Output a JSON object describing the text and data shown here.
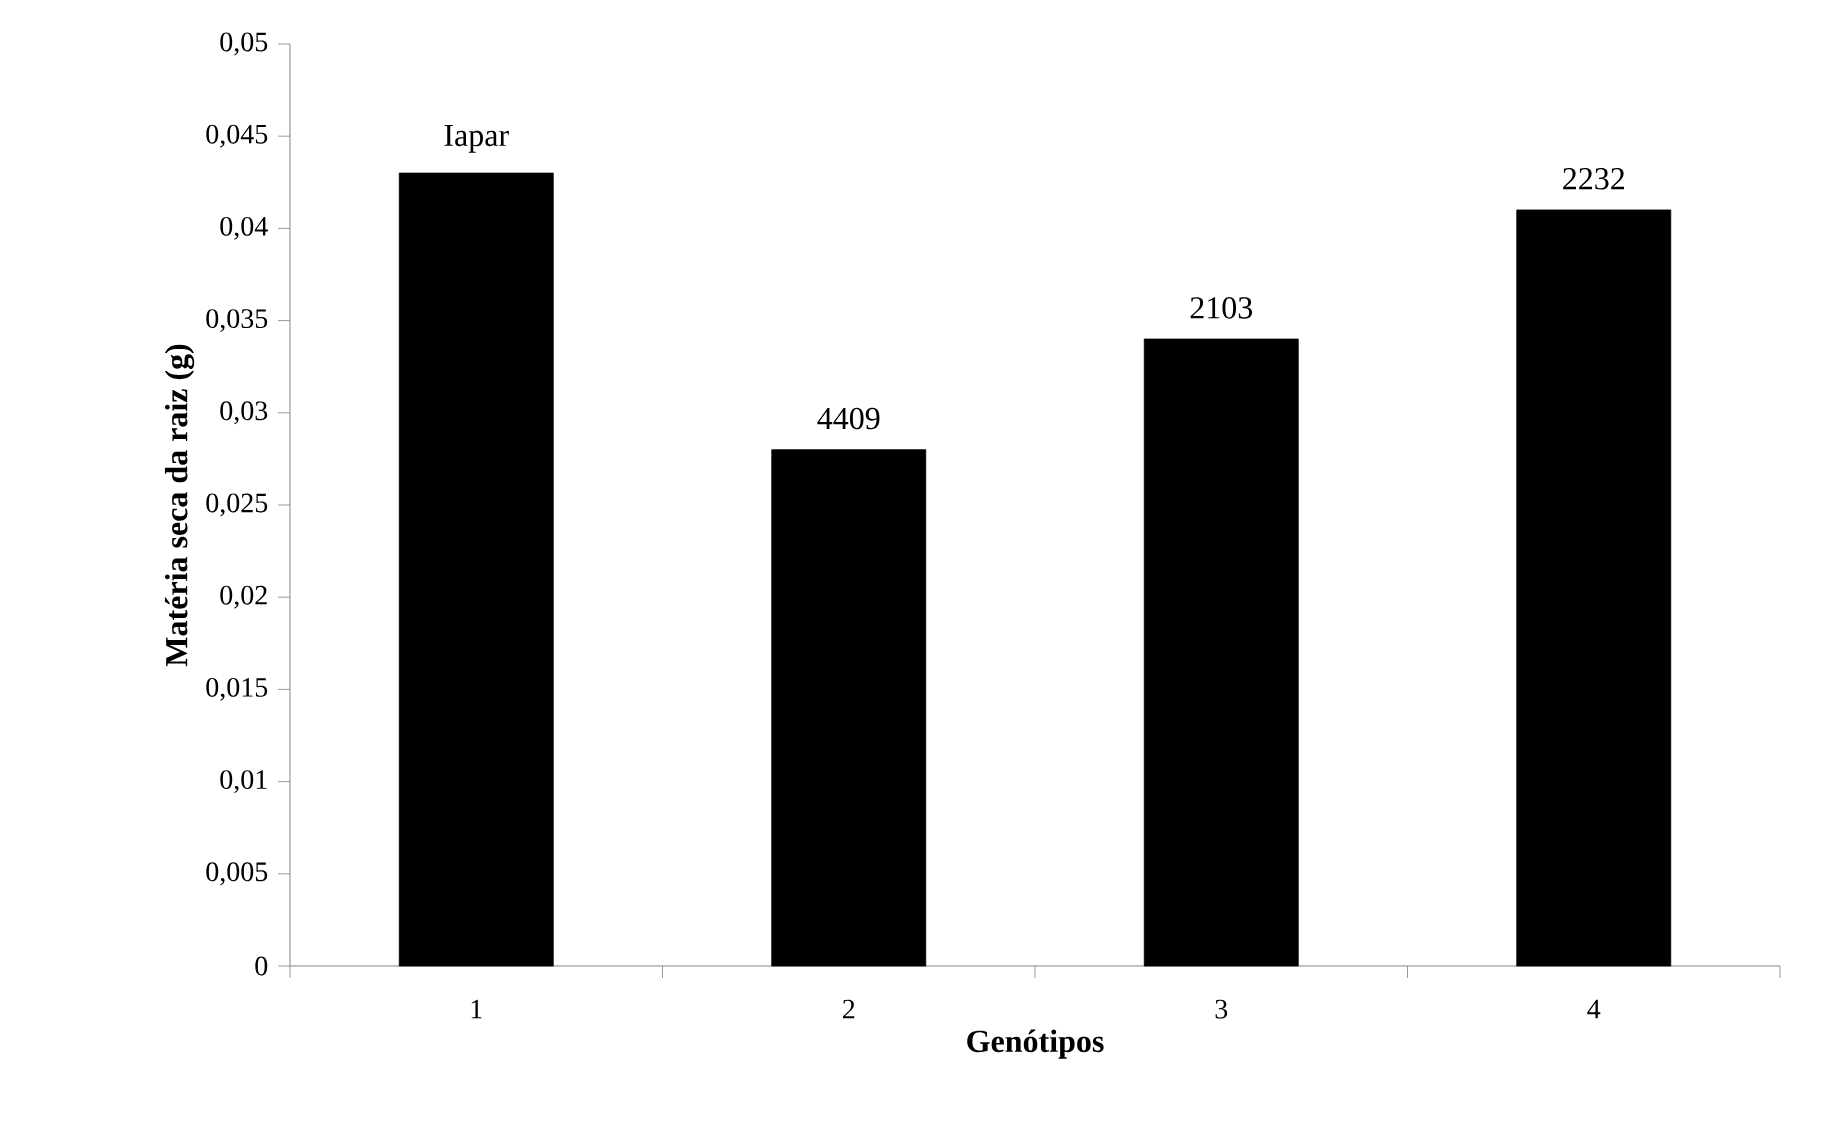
{
  "chart_data": {
    "type": "bar",
    "xlabel": "Genótipos",
    "ylabel": "Matéria seca da raiz (g)",
    "categories": [
      "1",
      "2",
      "3",
      "4"
    ],
    "values": [
      0.043,
      0.028,
      0.034,
      0.041
    ],
    "color": "#000000",
    "ylim": [
      0,
      0.05
    ],
    "yticks": [
      {
        "value": 0,
        "label": "0"
      },
      {
        "value": 0.005,
        "label": "0,005"
      },
      {
        "value": 0.01,
        "label": "0,01"
      },
      {
        "value": 0.015,
        "label": "0,015"
      },
      {
        "value": 0.02,
        "label": "0,02"
      },
      {
        "value": 0.025,
        "label": "0,025"
      },
      {
        "value": 0.03,
        "label": "0,03"
      },
      {
        "value": 0.035,
        "label": "0,035"
      },
      {
        "value": 0.04,
        "label": "0,04"
      },
      {
        "value": 0.045,
        "label": "0,045"
      },
      {
        "value": 0.05,
        "label": "0,05"
      }
    ],
    "annotations": [
      {
        "text": "Iapar",
        "x": "1",
        "y": 0.043
      },
      {
        "text": "4409",
        "x": "2",
        "y": 0.028
      },
      {
        "text": "2103",
        "x": "3",
        "y": 0.034
      },
      {
        "text": "2232",
        "x": "4",
        "y": 0.041
      }
    ]
  }
}
